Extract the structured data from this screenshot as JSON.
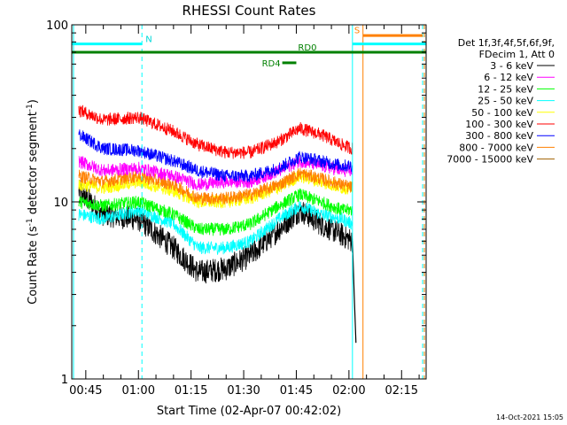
{
  "chart_data": {
    "type": "line",
    "title": "RHESSI Count Rates",
    "xlabel": "Start Time (02-Apr-07 00:42:02)",
    "ylabel_main": "Count Rate (s",
    "ylabel_sup1": "-1",
    "ylabel_mid": " detector segment",
    "ylabel_sup2": "-1",
    "ylabel_end": ")",
    "y_scale": "log",
    "xlim_minutes": [
      41,
      142
    ],
    "ylim": [
      1,
      100
    ],
    "x_ticks": [
      {
        "label": "00:45",
        "minutes": 45
      },
      {
        "label": "01:00",
        "minutes": 60
      },
      {
        "label": "01:15",
        "minutes": 75
      },
      {
        "label": "01:30",
        "minutes": 90
      },
      {
        "label": "01:45",
        "minutes": 105
      },
      {
        "label": "02:00",
        "minutes": 120
      },
      {
        "label": "02:15",
        "minutes": 135
      }
    ],
    "y_ticks": [
      {
        "label": "1",
        "value": 1
      },
      {
        "label": "10",
        "value": 10
      },
      {
        "label": "100",
        "value": 100
      }
    ],
    "legend_header": [
      "Det 1f,3f,4f,5f,6f,9f,",
      "FDecim 1, Att 0"
    ],
    "series": [
      {
        "name": "3 - 6 keV",
        "color": "#000000",
        "points": [
          [
            43,
            11.5
          ],
          [
            50,
            8.5
          ],
          [
            60,
            8
          ],
          [
            70,
            5.5
          ],
          [
            77,
            4
          ],
          [
            85,
            4.2
          ],
          [
            92,
            5
          ],
          [
            100,
            7
          ],
          [
            106,
            9
          ],
          [
            112,
            7.5
          ],
          [
            118,
            6.5
          ],
          [
            121,
            6
          ]
        ]
      },
      {
        "name": "6 - 12 keV",
        "color": "#ff00ff",
        "points": [
          [
            43,
            17
          ],
          [
            50,
            15
          ],
          [
            60,
            15.5
          ],
          [
            70,
            14
          ],
          [
            77,
            12.5
          ],
          [
            85,
            13
          ],
          [
            92,
            13
          ],
          [
            100,
            15
          ],
          [
            106,
            17
          ],
          [
            112,
            16
          ],
          [
            118,
            15
          ],
          [
            121,
            15
          ]
        ]
      },
      {
        "name": "12 - 25 keV",
        "color": "#00ff00",
        "points": [
          [
            43,
            10
          ],
          [
            50,
            9.5
          ],
          [
            60,
            10
          ],
          [
            70,
            8.5
          ],
          [
            77,
            7
          ],
          [
            85,
            7
          ],
          [
            92,
            7.5
          ],
          [
            100,
            9.5
          ],
          [
            106,
            11
          ],
          [
            112,
            10
          ],
          [
            118,
            9
          ],
          [
            121,
            9
          ]
        ]
      },
      {
        "name": "25 - 50 keV",
        "color": "#00ffff",
        "points": [
          [
            43,
            8.5
          ],
          [
            50,
            8
          ],
          [
            60,
            9
          ],
          [
            70,
            7.5
          ],
          [
            77,
            5.5
          ],
          [
            85,
            5.5
          ],
          [
            92,
            6
          ],
          [
            100,
            8
          ],
          [
            106,
            9.5
          ],
          [
            112,
            8.5
          ],
          [
            118,
            8
          ],
          [
            121,
            7.5
          ]
        ]
      },
      {
        "name": "50 - 100 keV",
        "color": "#ffff00",
        "points": [
          [
            43,
            12.5
          ],
          [
            50,
            12
          ],
          [
            60,
            13
          ],
          [
            70,
            11.5
          ],
          [
            77,
            10
          ],
          [
            85,
            10
          ],
          [
            92,
            10.5
          ],
          [
            100,
            12
          ],
          [
            106,
            14
          ],
          [
            112,
            13
          ],
          [
            118,
            12
          ],
          [
            121,
            12
          ]
        ]
      },
      {
        "name": "100 - 300 keV",
        "color": "#ff0000",
        "points": [
          [
            43,
            33
          ],
          [
            50,
            29
          ],
          [
            60,
            30
          ],
          [
            70,
            25
          ],
          [
            77,
            21
          ],
          [
            85,
            19
          ],
          [
            92,
            19
          ],
          [
            100,
            22
          ],
          [
            106,
            26
          ],
          [
            112,
            24
          ],
          [
            118,
            21
          ],
          [
            121,
            20
          ]
        ]
      },
      {
        "name": "300 - 800 keV",
        "color": "#0000ff",
        "points": [
          [
            43,
            24
          ],
          [
            50,
            20
          ],
          [
            60,
            19.5
          ],
          [
            70,
            17
          ],
          [
            77,
            15
          ],
          [
            85,
            14
          ],
          [
            92,
            14
          ],
          [
            100,
            15.5
          ],
          [
            106,
            18
          ],
          [
            112,
            17
          ],
          [
            118,
            16
          ],
          [
            121,
            16
          ]
        ]
      },
      {
        "name": "800 - 7000 keV",
        "color": "#ff8000",
        "points": [
          [
            43,
            14
          ],
          [
            50,
            13
          ],
          [
            60,
            14
          ],
          [
            70,
            12.5
          ],
          [
            77,
            10.5
          ],
          [
            85,
            10.5
          ],
          [
            92,
            11
          ],
          [
            100,
            12.5
          ],
          [
            106,
            14.5
          ],
          [
            112,
            13.5
          ],
          [
            118,
            12.5
          ],
          [
            121,
            12
          ]
        ]
      },
      {
        "name": "7000 - 15000 keV",
        "color": "#a06000",
        "points": []
      }
    ],
    "dropout": {
      "color": "#000000",
      "points": [
        [
          121,
          6
        ],
        [
          121.5,
          3
        ],
        [
          122,
          1.6
        ]
      ]
    },
    "attenuator_bars": [
      {
        "label": "N",
        "color": "#00ffff",
        "x_start": 41,
        "x_end": 61,
        "y": 78
      },
      {
        "label": "S",
        "color": "#00ffff",
        "x_start": 121,
        "x_end": 142,
        "y": 78
      },
      {
        "label": "",
        "color": "#ff8000",
        "x_start": 124,
        "x_end": 141,
        "y": 87
      },
      {
        "label": "",
        "color": "#008000",
        "x_start": 41,
        "x_end": 142,
        "y": 70
      },
      {
        "label": "RD0",
        "color": "#008000",
        "x_start": 106,
        "x_end": 110,
        "y": 70
      },
      {
        "label": "RD4",
        "color": "#008000",
        "x_start": 101,
        "x_end": 105,
        "y": 61
      }
    ],
    "vertical_lines": [
      {
        "color": "#00ffff",
        "x": 41.5,
        "style": "solid"
      },
      {
        "color": "#00ffff",
        "x": 61,
        "style": "dashed"
      },
      {
        "color": "#00ffff",
        "x": 121,
        "style": "solid"
      },
      {
        "color": "#ff8000",
        "x": 124,
        "style": "solid"
      },
      {
        "color": "#00ffff",
        "x": 141,
        "style": "dashed"
      },
      {
        "color": "#ff8000",
        "x": 141.5,
        "style": "dashed"
      }
    ]
  },
  "footer": {
    "timestamp": "14-Oct-2021 15:05"
  }
}
